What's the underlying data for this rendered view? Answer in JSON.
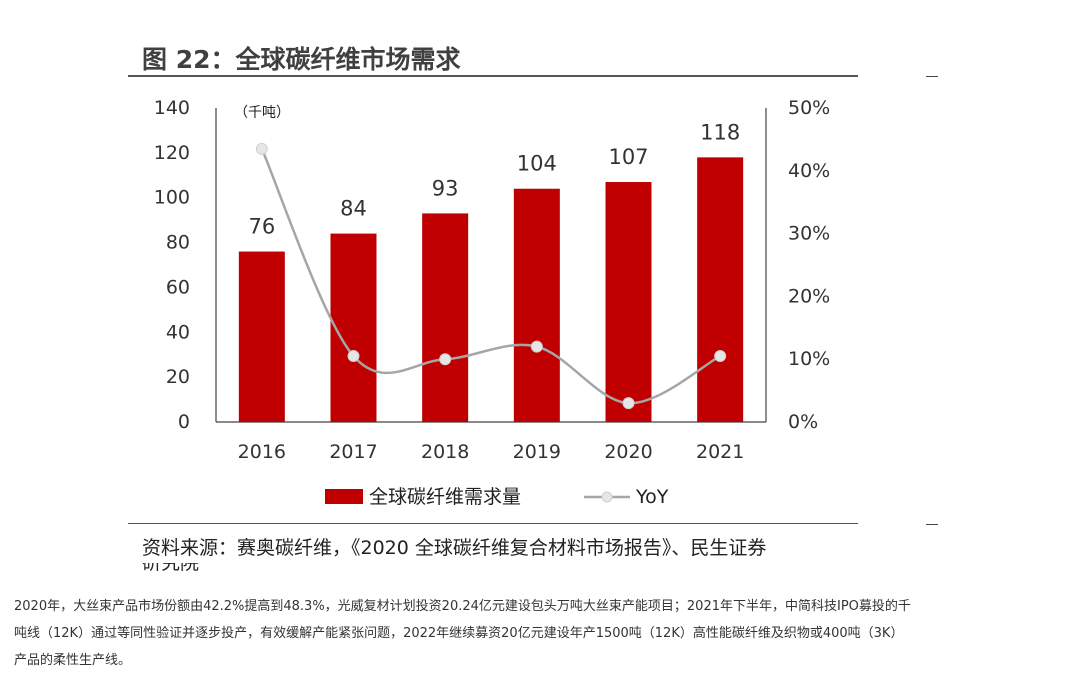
{
  "figure": {
    "title": "图 22：全球碳纤维市场需求",
    "source": "资料来源：赛奥碳纤维，《2020 全球碳纤维复合材料市场报告》、民生证券",
    "source_overflow": "研究院"
  },
  "chart_data": {
    "type": "bar",
    "categories": [
      "2016",
      "2017",
      "2018",
      "2019",
      "2020",
      "2021"
    ],
    "series": [
      {
        "name": "全球碳纤维需求量",
        "type": "bar",
        "axis": "left",
        "values": [
          76,
          84,
          93,
          104,
          107,
          118
        ],
        "color": "#c00000"
      },
      {
        "name": "YoY",
        "type": "line",
        "axis": "right",
        "values": [
          43.5,
          10.5,
          10,
          12,
          3,
          10.5
        ],
        "color": "#a6a6a6"
      }
    ],
    "unit_label": "（千吨）",
    "ylim": [
      0,
      140
    ],
    "yticks": [
      0,
      20,
      40,
      60,
      80,
      100,
      120,
      140
    ],
    "y2lim": [
      0,
      50
    ],
    "y2ticks": [
      "0%",
      "10%",
      "20%",
      "30%",
      "40%",
      "50%"
    ],
    "legend_position": "bottom",
    "grid": false
  },
  "paragraph": {
    "lines": [
      "2020年，大丝束产品市场份额由42.2%提高到48.3%，光威复材计划投资20.24亿元建设包头万吨大丝束产能项目；2021年下半年，中简科技IPO募投的千",
      "吨线（12K）通过等同性验证并逐步投产，有效缓解产能紧张问题，2022年继续募资20亿元建设年产1500吨（12K）高性能碳纤维及织物或400吨（3K）",
      "产品的柔性生产线。"
    ]
  }
}
